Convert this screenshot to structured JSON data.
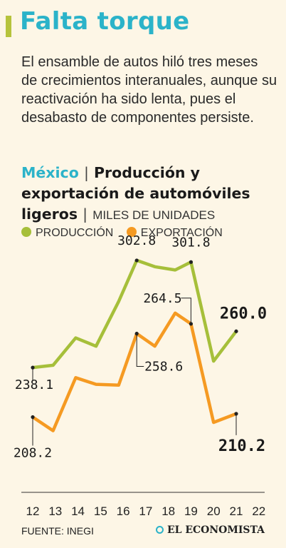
{
  "header": {
    "title": "Falta torque"
  },
  "description": "El ensamble de autos hiló tres meses de crecimientos interanuales, aunque su reactivación ha sido lenta, pues el desabasto de componentes persiste.",
  "subtitle": {
    "country": "México",
    "separator": "|",
    "main": "Producción y exportación de automóviles ligeros",
    "units": "MILES DE UNIDADES"
  },
  "colors": {
    "production": "#a6bf3a",
    "export": "#f59a22",
    "accent": "#2bb3c9"
  },
  "chart_data": {
    "type": "line",
    "x": [
      "12",
      "13",
      "14",
      "15",
      "16",
      "17",
      "18",
      "19",
      "20",
      "21",
      "22"
    ],
    "xlim": [
      12,
      22
    ],
    "ylim": [
      180,
      320
    ],
    "series": [
      {
        "name": "PRODUCCIÓN",
        "color": "#a6bf3a",
        "points": [
          [
            12,
            238.1
          ],
          [
            12.9,
            239.5
          ],
          [
            13.9,
            256
          ],
          [
            14.8,
            251
          ],
          [
            15.8,
            278
          ],
          [
            16.6,
            302.8
          ],
          [
            17.4,
            299
          ],
          [
            18.3,
            297
          ],
          [
            19.0,
            301.8
          ],
          [
            20.0,
            242
          ],
          [
            21,
            260.0
          ]
        ]
      },
      {
        "name": "EXPORTACIÓN",
        "color": "#f59a22",
        "points": [
          [
            12,
            208.2
          ],
          [
            12.9,
            200
          ],
          [
            13.9,
            232
          ],
          [
            14.8,
            228
          ],
          [
            15.8,
            227.5
          ],
          [
            16.6,
            258.6
          ],
          [
            17.4,
            251
          ],
          [
            18.3,
            271
          ],
          [
            19.0,
            264.5
          ],
          [
            20.0,
            205
          ],
          [
            21,
            210.2
          ]
        ]
      }
    ],
    "annotations": [
      {
        "label": "238.1",
        "series": 0,
        "point": 0,
        "bold": false
      },
      {
        "label": "302.8",
        "series": 0,
        "point": 5,
        "bold": false
      },
      {
        "label": "301.8",
        "series": 0,
        "point": 8,
        "bold": false
      },
      {
        "label": "260.0",
        "series": 0,
        "point": 10,
        "bold": true
      },
      {
        "label": "208.2",
        "series": 1,
        "point": 0,
        "bold": false
      },
      {
        "label": "258.6",
        "series": 1,
        "point": 5,
        "bold": false
      },
      {
        "label": "264.5",
        "series": 1,
        "point": 8,
        "bold": false
      },
      {
        "label": "210.2",
        "series": 1,
        "point": 10,
        "bold": true
      }
    ]
  },
  "footer": {
    "source": "FUENTE: INEGI",
    "brand": "EL ECONOMISTA"
  }
}
